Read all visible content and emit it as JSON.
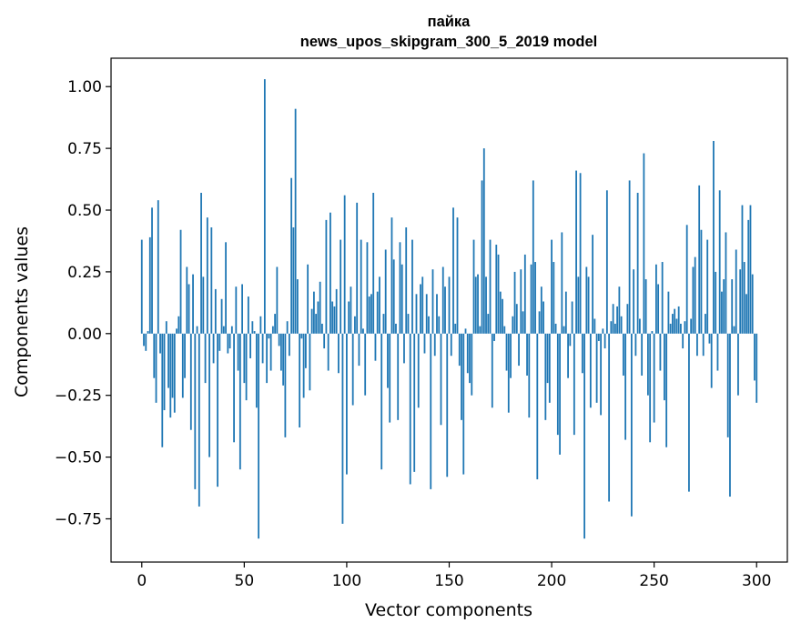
{
  "chart_data": {
    "type": "bar",
    "title": "пайка",
    "subtitle": "news_upos_skipgram_300_5_2019 model",
    "xlabel": "Vector components",
    "ylabel": "Components values",
    "xlim": [
      -15,
      315
    ],
    "ylim": [
      -0.925,
      1.115
    ],
    "xticks": [
      0,
      50,
      100,
      150,
      200,
      250,
      300
    ],
    "xtick_labels": [
      "0",
      "50",
      "100",
      "150",
      "200",
      "250",
      "300"
    ],
    "yticks": [
      1.0,
      0.75,
      0.5,
      0.25,
      0.0,
      -0.25,
      -0.5,
      -0.75
    ],
    "ytick_labels": [
      "1.00",
      "0.75",
      "0.50",
      "0.25",
      "0.00",
      "−0.25",
      "−0.50",
      "−0.75"
    ],
    "bar_color": "#1f77b4",
    "x": "0..299",
    "values": [
      0.38,
      -0.05,
      -0.07,
      0.01,
      0.39,
      0.51,
      -0.18,
      -0.28,
      0.54,
      -0.08,
      -0.46,
      -0.31,
      0.05,
      -0.22,
      -0.34,
      -0.26,
      -0.32,
      0.02,
      0.07,
      0.42,
      -0.26,
      -0.18,
      0.27,
      0.2,
      -0.39,
      0.24,
      -0.63,
      0.03,
      -0.7,
      0.57,
      0.23,
      -0.2,
      0.47,
      -0.5,
      0.43,
      -0.12,
      0.18,
      -0.62,
      -0.07,
      0.14,
      0.03,
      0.37,
      -0.08,
      -0.06,
      0.03,
      -0.44,
      0.19,
      -0.15,
      -0.55,
      0.2,
      -0.2,
      -0.27,
      0.15,
      -0.1,
      0.05,
      0.01,
      -0.3,
      -0.83,
      0.07,
      -0.12,
      1.03,
      -0.2,
      -0.02,
      -0.15,
      0.03,
      0.08,
      0.27,
      -0.05,
      -0.15,
      -0.21,
      -0.42,
      0.05,
      -0.09,
      0.63,
      0.43,
      0.91,
      0.22,
      -0.38,
      -0.02,
      -0.26,
      -0.14,
      0.28,
      -0.23,
      0.1,
      0.17,
      0.08,
      0.13,
      0.21,
      0.04,
      -0.06,
      0.46,
      -0.15,
      0.49,
      0.13,
      0.11,
      0.18,
      -0.16,
      0.38,
      -0.77,
      0.56,
      -0.57,
      0.13,
      0.19,
      -0.29,
      0.07,
      0.53,
      -0.13,
      0.38,
      0.02,
      -0.25,
      0.37,
      0.15,
      0.16,
      0.57,
      -0.11,
      0.17,
      0.23,
      -0.55,
      0.08,
      0.34,
      -0.22,
      -0.36,
      0.47,
      0.3,
      0.04,
      -0.35,
      0.37,
      0.28,
      -0.12,
      0.43,
      0.08,
      -0.61,
      0.38,
      -0.56,
      0.16,
      -0.3,
      0.2,
      0.23,
      -0.08,
      0.16,
      0.07,
      -0.63,
      0.26,
      -0.09,
      0.16,
      0.07,
      -0.37,
      0.27,
      0.19,
      -0.58,
      0.23,
      -0.09,
      0.51,
      0.04,
      0.47,
      -0.13,
      -0.35,
      -0.57,
      0.02,
      -0.16,
      -0.2,
      -0.25,
      0.38,
      0.23,
      0.24,
      0.03,
      0.62,
      0.75,
      0.23,
      0.08,
      0.38,
      -0.3,
      -0.03,
      0.36,
      0.32,
      0.17,
      0.14,
      0.03,
      -0.15,
      -0.32,
      -0.18,
      0.07,
      0.25,
      0.12,
      -0.13,
      0.26,
      0.09,
      0.32,
      -0.17,
      -0.34,
      0.28,
      0.62,
      0.29,
      -0.59,
      0.09,
      0.19,
      0.13,
      -0.35,
      -0.2,
      -0.28,
      0.38,
      0.29,
      0.04,
      -0.41,
      -0.49,
      0.41,
      0.03,
      0.17,
      -0.18,
      -0.05,
      0.13,
      -0.41,
      0.66,
      0.23,
      0.65,
      -0.16,
      -0.83,
      0.27,
      0.23,
      -0.3,
      0.4,
      0.06,
      -0.28,
      -0.03,
      -0.33,
      0.02,
      -0.06,
      0.58,
      -0.68,
      0.05,
      0.12,
      0.04,
      0.11,
      0.19,
      0.07,
      -0.17,
      -0.43,
      0.12,
      0.62,
      -0.74,
      0.26,
      -0.09,
      0.57,
      0.06,
      -0.17,
      0.73,
      0.22,
      -0.25,
      -0.44,
      0.01,
      -0.36,
      0.28,
      0.2,
      -0.15,
      0.29,
      -0.27,
      -0.46,
      0.17,
      0.04,
      0.08,
      0.1,
      0.06,
      0.11,
      0.04,
      -0.06,
      0.05,
      0.44,
      -0.64,
      0.06,
      0.27,
      0.31,
      -0.09,
      0.6,
      0.42,
      -0.09,
      0.08,
      0.38,
      -0.04,
      -0.22,
      0.78,
      0.25,
      -0.15,
      0.58,
      0.17,
      0.22,
      0.41,
      -0.42,
      -0.66,
      0.22,
      0.03,
      0.34,
      -0.25,
      0.26,
      0.52,
      0.29,
      0.16,
      0.46,
      0.52,
      0.24,
      -0.19,
      -0.28
    ]
  }
}
